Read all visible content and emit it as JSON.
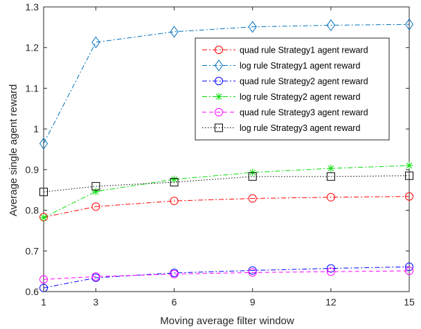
{
  "chart_data": {
    "type": "line",
    "title": "",
    "xlabel": "Moving average filter window",
    "ylabel": "Average single agent reward",
    "x": [
      1,
      3,
      6,
      9,
      12,
      15
    ],
    "x_ticks": [
      "1",
      "3",
      "6",
      "9",
      "12",
      "15"
    ],
    "y_ticks": [
      "0.6",
      "0.7",
      "0.8",
      "0.9",
      "1",
      "1.1",
      "1.2",
      "1.3"
    ],
    "xlim": [
      1,
      15
    ],
    "ylim": [
      0.6,
      1.3
    ],
    "grid": false,
    "legend_position": "top-right",
    "series": [
      {
        "name": "quad rule Strategy1 agent reward",
        "values": [
          0.783,
          0.809,
          0.823,
          0.829,
          0.832,
          0.834
        ],
        "color": "#ff0000",
        "linestyle": "dashdot",
        "marker": "circle"
      },
      {
        "name": "log rule Strategy1 agent reward",
        "values": [
          0.964,
          1.213,
          1.239,
          1.251,
          1.255,
          1.257
        ],
        "color": "#0072bd",
        "linestyle": "dashdot",
        "marker": "diamond"
      },
      {
        "name": "quad rule Strategy2 agent reward",
        "values": [
          0.609,
          0.634,
          0.646,
          0.652,
          0.657,
          0.661
        ],
        "color": "#0000ff",
        "linestyle": "dashdot",
        "marker": "circle"
      },
      {
        "name": "log rule Strategy2 agent reward",
        "values": [
          0.782,
          0.846,
          0.876,
          0.893,
          0.903,
          0.91
        ],
        "color": "#00dd00",
        "linestyle": "dashdot",
        "marker": "asterisk"
      },
      {
        "name": "quad rule Strategy3 agent reward",
        "values": [
          0.63,
          0.637,
          0.643,
          0.647,
          0.649,
          0.651
        ],
        "color": "#ff00ff",
        "linestyle": "dashed",
        "marker": "circle"
      },
      {
        "name": "log rule Strategy3 agent reward",
        "values": [
          0.845,
          0.859,
          0.869,
          0.883,
          0.883,
          0.885
        ],
        "color": "#000000",
        "linestyle": "dotted",
        "marker": "square"
      }
    ]
  }
}
